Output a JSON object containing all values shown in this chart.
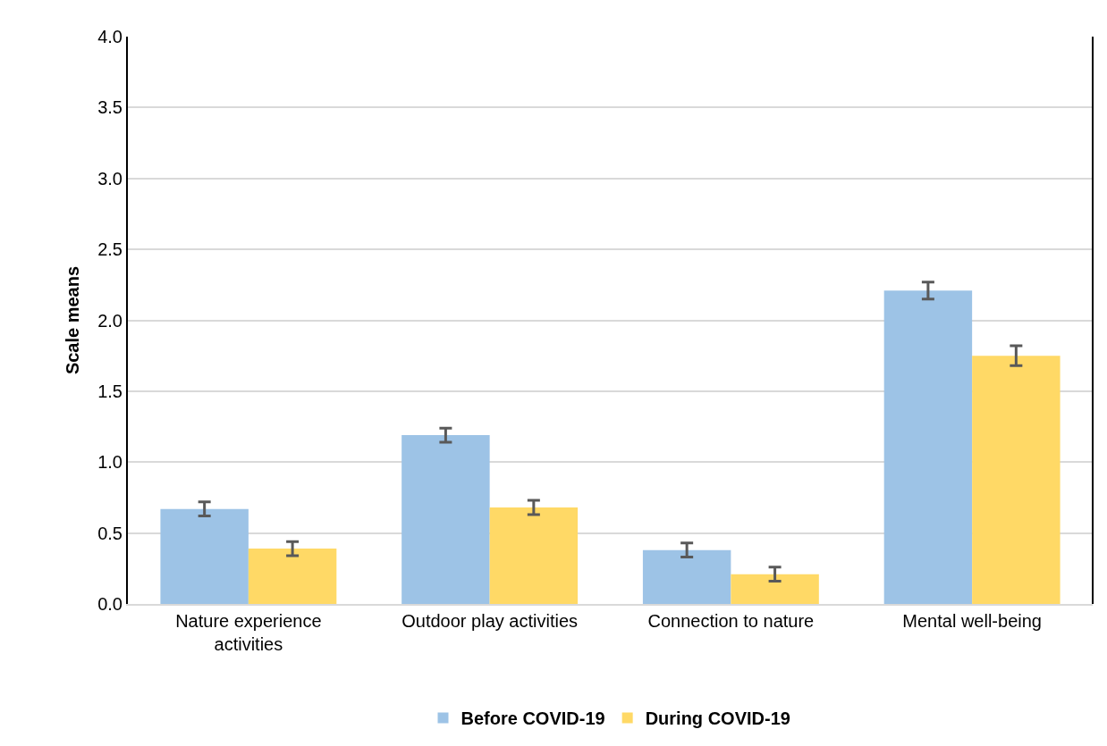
{
  "chart_data": {
    "type": "bar",
    "ylabel": "Scale means",
    "categories": [
      "Nature experience activities",
      "Outdoor play activities",
      "Connection to nature",
      "Mental well-being"
    ],
    "series": [
      {
        "name": "Before COVID-19",
        "color": "#9dc3e6",
        "values": [
          0.67,
          1.19,
          0.38,
          2.21
        ],
        "errors": [
          0.05,
          0.05,
          0.05,
          0.06
        ]
      },
      {
        "name": "During COVID-19",
        "color": "#ffd966",
        "values": [
          0.39,
          0.68,
          0.21,
          1.75
        ],
        "errors": [
          0.05,
          0.05,
          0.05,
          0.07
        ]
      }
    ],
    "ylim": [
      0,
      4
    ],
    "yticks": [
      {
        "value": 0,
        "label": "0.0"
      },
      {
        "value": 0.5,
        "label": "0.5"
      },
      {
        "value": 1,
        "label": "1.0"
      },
      {
        "value": 1.5,
        "label": "1.5"
      },
      {
        "value": 2,
        "label": "2.0"
      },
      {
        "value": 2.5,
        "label": "2.5"
      },
      {
        "value": 3,
        "label": "3.0"
      },
      {
        "value": 3.5,
        "label": "3.5"
      },
      {
        "value": 4,
        "label": "4.0"
      }
    ],
    "grid": "y",
    "legend": "bottom"
  }
}
